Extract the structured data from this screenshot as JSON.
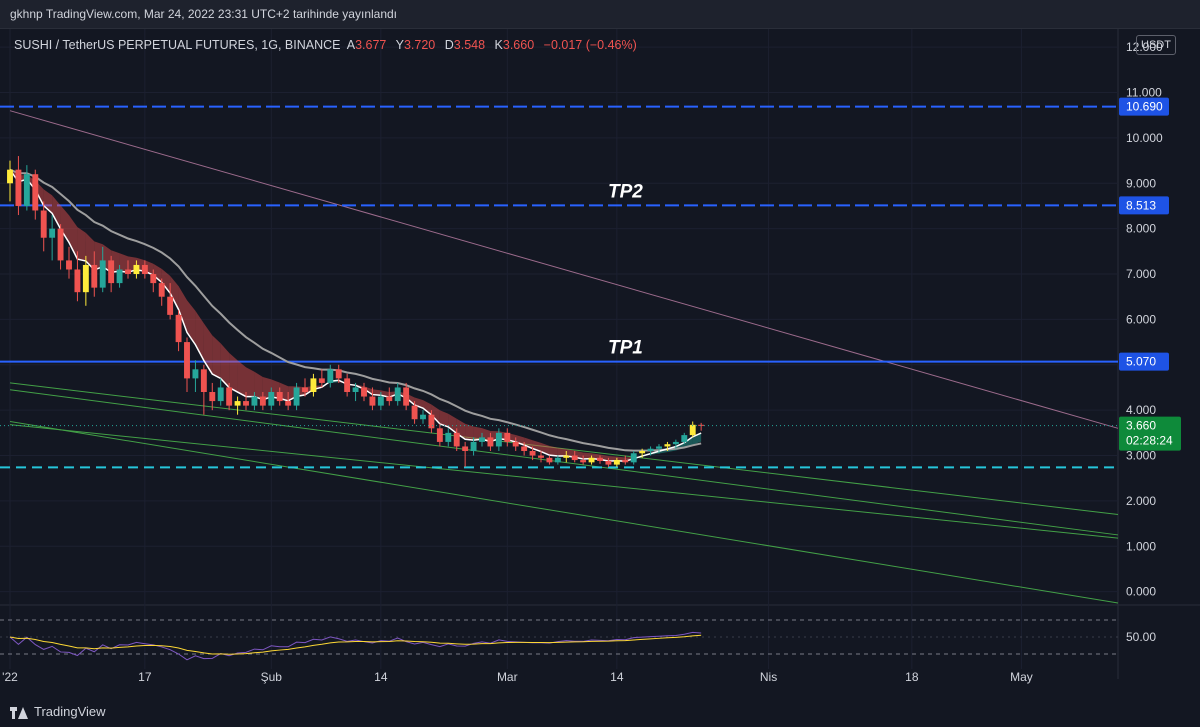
{
  "header": {
    "publish_line": "gkhnp TradingView.com, Mar 24, 2022 23:31 UTC+2 tarihinde yayınlandı"
  },
  "legend": {
    "symbol": "SUSHI / TetherUS PERPETUAL FUTURES, 1G, BINANCE",
    "open_label": "A",
    "open": "3.677",
    "high_label": "Y",
    "high": "3.720",
    "low_label": "D",
    "low": "3.548",
    "close_label": "K",
    "close": "3.660",
    "change": "−0.017 (−0.46%)"
  },
  "currency": "USDT",
  "brand": "TradingView",
  "colors": {
    "background": "#131722",
    "up": "#26a69a",
    "down": "#ef5350",
    "level_line": "#2962ff",
    "level_badge": "#1e53e5",
    "price_badge": "#0e8a3a",
    "trend_up": "#43a047",
    "trend_down": "#9c6b8c"
  },
  "chart_data": {
    "type": "candlestick",
    "ylim": [
      -0.25,
      12.4
    ],
    "y_ticks": [
      12,
      11,
      10,
      9,
      8,
      7,
      6,
      5,
      4,
      3,
      2,
      1,
      0
    ],
    "y_tick_labels": [
      "12.000",
      "11.000",
      "10.000",
      "9.000",
      "8.000",
      "7.000",
      "6.000",
      "5.000",
      "4.000",
      "3.000",
      "2.000",
      "1.000",
      "0.000"
    ],
    "x_range": [
      "2022-01-01",
      "2022-05-21"
    ],
    "x_ticks": [
      {
        "date": "2022-01-01",
        "label": "'22"
      },
      {
        "date": "2022-01-17",
        "label": "17"
      },
      {
        "date": "2022-02-01",
        "label": "Şub"
      },
      {
        "date": "2022-02-14",
        "label": "14"
      },
      {
        "date": "2022-03-01",
        "label": "Mar"
      },
      {
        "date": "2022-03-14",
        "label": "14"
      },
      {
        "date": "2022-04-01",
        "label": "Nis"
      },
      {
        "date": "2022-04-18",
        "label": "18"
      },
      {
        "date": "2022-05-01",
        "label": "May"
      }
    ],
    "levels": [
      {
        "value": 10.69,
        "label": "10.690",
        "style": "dashed"
      },
      {
        "value": 8.513,
        "label": "8.513",
        "style": "dashed",
        "annotation": "TP2"
      },
      {
        "value": 5.07,
        "label": "5.070",
        "style": "solid",
        "annotation": "TP1"
      },
      {
        "value": 2.74,
        "label": "",
        "style": "dashed-cyan"
      }
    ],
    "last_price": {
      "value": 3.66,
      "label": "3.660",
      "countdown": "02:28:24"
    },
    "candles": [
      {
        "date": "2022-01-01",
        "o": 9.0,
        "h": 9.5,
        "l": 8.6,
        "c": 9.3
      },
      {
        "date": "2022-01-02",
        "o": 9.3,
        "h": 9.6,
        "l": 8.3,
        "c": 8.5
      },
      {
        "date": "2022-01-03",
        "o": 8.5,
        "h": 9.4,
        "l": 8.4,
        "c": 9.2
      },
      {
        "date": "2022-01-04",
        "o": 9.2,
        "h": 9.3,
        "l": 8.2,
        "c": 8.4
      },
      {
        "date": "2022-01-05",
        "o": 8.4,
        "h": 8.6,
        "l": 7.5,
        "c": 7.8
      },
      {
        "date": "2022-01-06",
        "o": 7.8,
        "h": 8.3,
        "l": 7.3,
        "c": 8.0
      },
      {
        "date": "2022-01-07",
        "o": 8.0,
        "h": 8.1,
        "l": 7.1,
        "c": 7.3
      },
      {
        "date": "2022-01-08",
        "o": 7.3,
        "h": 7.6,
        "l": 6.9,
        "c": 7.1
      },
      {
        "date": "2022-01-09",
        "o": 7.1,
        "h": 7.5,
        "l": 6.4,
        "c": 6.6
      },
      {
        "date": "2022-01-10",
        "o": 6.6,
        "h": 7.4,
        "l": 6.3,
        "c": 7.2
      },
      {
        "date": "2022-01-11",
        "o": 7.2,
        "h": 7.5,
        "l": 6.5,
        "c": 6.7
      },
      {
        "date": "2022-01-12",
        "o": 6.7,
        "h": 7.6,
        "l": 6.6,
        "c": 7.3
      },
      {
        "date": "2022-01-13",
        "o": 7.3,
        "h": 7.4,
        "l": 6.6,
        "c": 6.8
      },
      {
        "date": "2022-01-14",
        "o": 6.8,
        "h": 7.2,
        "l": 6.7,
        "c": 7.1
      },
      {
        "date": "2022-01-15",
        "o": 7.1,
        "h": 7.3,
        "l": 6.9,
        "c": 7.0
      },
      {
        "date": "2022-01-16",
        "o": 7.0,
        "h": 7.3,
        "l": 6.9,
        "c": 7.2
      },
      {
        "date": "2022-01-17",
        "o": 7.2,
        "h": 7.3,
        "l": 6.9,
        "c": 7.0
      },
      {
        "date": "2022-01-18",
        "o": 7.0,
        "h": 7.1,
        "l": 6.6,
        "c": 6.8
      },
      {
        "date": "2022-01-19",
        "o": 6.8,
        "h": 6.9,
        "l": 6.3,
        "c": 6.5
      },
      {
        "date": "2022-01-20",
        "o": 6.5,
        "h": 6.8,
        "l": 6.0,
        "c": 6.1
      },
      {
        "date": "2022-01-21",
        "o": 6.1,
        "h": 6.2,
        "l": 5.3,
        "c": 5.5
      },
      {
        "date": "2022-01-22",
        "o": 5.5,
        "h": 5.6,
        "l": 4.4,
        "c": 4.7
      },
      {
        "date": "2022-01-23",
        "o": 4.7,
        "h": 5.1,
        "l": 4.4,
        "c": 4.9
      },
      {
        "date": "2022-01-24",
        "o": 4.9,
        "h": 5.0,
        "l": 3.9,
        "c": 4.4
      },
      {
        "date": "2022-01-25",
        "o": 4.4,
        "h": 4.6,
        "l": 4.0,
        "c": 4.2
      },
      {
        "date": "2022-01-26",
        "o": 4.2,
        "h": 4.7,
        "l": 4.1,
        "c": 4.5
      },
      {
        "date": "2022-01-27",
        "o": 4.5,
        "h": 4.6,
        "l": 4.0,
        "c": 4.1
      },
      {
        "date": "2022-01-28",
        "o": 4.1,
        "h": 4.3,
        "l": 3.9,
        "c": 4.2
      },
      {
        "date": "2022-01-29",
        "o": 4.2,
        "h": 4.4,
        "l": 4.0,
        "c": 4.1
      },
      {
        "date": "2022-01-30",
        "o": 4.1,
        "h": 4.4,
        "l": 4.0,
        "c": 4.3
      },
      {
        "date": "2022-01-31",
        "o": 4.3,
        "h": 4.4,
        "l": 4.0,
        "c": 4.1
      },
      {
        "date": "2022-02-01",
        "o": 4.1,
        "h": 4.5,
        "l": 4.0,
        "c": 4.4
      },
      {
        "date": "2022-02-02",
        "o": 4.4,
        "h": 4.5,
        "l": 4.1,
        "c": 4.2
      },
      {
        "date": "2022-02-03",
        "o": 4.2,
        "h": 4.4,
        "l": 4.0,
        "c": 4.1
      },
      {
        "date": "2022-02-04",
        "o": 4.1,
        "h": 4.6,
        "l": 4.0,
        "c": 4.5
      },
      {
        "date": "2022-02-05",
        "o": 4.5,
        "h": 4.7,
        "l": 4.3,
        "c": 4.4
      },
      {
        "date": "2022-02-06",
        "o": 4.4,
        "h": 4.8,
        "l": 4.3,
        "c": 4.7
      },
      {
        "date": "2022-02-07",
        "o": 4.7,
        "h": 4.9,
        "l": 4.5,
        "c": 4.6
      },
      {
        "date": "2022-02-08",
        "o": 4.6,
        "h": 5.0,
        "l": 4.5,
        "c": 4.9
      },
      {
        "date": "2022-02-09",
        "o": 4.9,
        "h": 5.0,
        "l": 4.6,
        "c": 4.7
      },
      {
        "date": "2022-02-10",
        "o": 4.7,
        "h": 4.8,
        "l": 4.3,
        "c": 4.4
      },
      {
        "date": "2022-02-11",
        "o": 4.4,
        "h": 4.6,
        "l": 4.2,
        "c": 4.5
      },
      {
        "date": "2022-02-12",
        "o": 4.5,
        "h": 4.6,
        "l": 4.2,
        "c": 4.3
      },
      {
        "date": "2022-02-13",
        "o": 4.3,
        "h": 4.5,
        "l": 4.0,
        "c": 4.1
      },
      {
        "date": "2022-02-14",
        "o": 4.1,
        "h": 4.4,
        "l": 4.0,
        "c": 4.3
      },
      {
        "date": "2022-02-15",
        "o": 4.3,
        "h": 4.5,
        "l": 4.1,
        "c": 4.2
      },
      {
        "date": "2022-02-16",
        "o": 4.2,
        "h": 4.6,
        "l": 4.1,
        "c": 4.5
      },
      {
        "date": "2022-02-17",
        "o": 4.5,
        "h": 4.6,
        "l": 4.0,
        "c": 4.1
      },
      {
        "date": "2022-02-18",
        "o": 4.1,
        "h": 4.2,
        "l": 3.7,
        "c": 3.8
      },
      {
        "date": "2022-02-19",
        "o": 3.8,
        "h": 4.0,
        "l": 3.7,
        "c": 3.9
      },
      {
        "date": "2022-02-20",
        "o": 3.9,
        "h": 4.0,
        "l": 3.5,
        "c": 3.6
      },
      {
        "date": "2022-02-21",
        "o": 3.6,
        "h": 3.7,
        "l": 3.2,
        "c": 3.3
      },
      {
        "date": "2022-02-22",
        "o": 3.3,
        "h": 3.6,
        "l": 3.2,
        "c": 3.5
      },
      {
        "date": "2022-02-23",
        "o": 3.5,
        "h": 3.6,
        "l": 3.1,
        "c": 3.2
      },
      {
        "date": "2022-02-24",
        "o": 3.2,
        "h": 3.3,
        "l": 2.75,
        "c": 3.1
      },
      {
        "date": "2022-02-25",
        "o": 3.1,
        "h": 3.4,
        "l": 3.0,
        "c": 3.3
      },
      {
        "date": "2022-02-26",
        "o": 3.3,
        "h": 3.5,
        "l": 3.2,
        "c": 3.4
      },
      {
        "date": "2022-02-27",
        "o": 3.4,
        "h": 3.5,
        "l": 3.1,
        "c": 3.2
      },
      {
        "date": "2022-02-28",
        "o": 3.2,
        "h": 3.6,
        "l": 3.1,
        "c": 3.5
      },
      {
        "date": "2022-03-01",
        "o": 3.5,
        "h": 3.6,
        "l": 3.2,
        "c": 3.3
      },
      {
        "date": "2022-03-02",
        "o": 3.3,
        "h": 3.4,
        "l": 3.1,
        "c": 3.2
      },
      {
        "date": "2022-03-03",
        "o": 3.2,
        "h": 3.3,
        "l": 3.0,
        "c": 3.1
      },
      {
        "date": "2022-03-04",
        "o": 3.1,
        "h": 3.2,
        "l": 2.9,
        "c": 3.0
      },
      {
        "date": "2022-03-05",
        "o": 3.0,
        "h": 3.1,
        "l": 2.85,
        "c": 2.95
      },
      {
        "date": "2022-03-06",
        "o": 2.95,
        "h": 3.0,
        "l": 2.8,
        "c": 2.85
      },
      {
        "date": "2022-03-07",
        "o": 2.85,
        "h": 3.0,
        "l": 2.8,
        "c": 2.95
      },
      {
        "date": "2022-03-08",
        "o": 2.95,
        "h": 3.1,
        "l": 2.85,
        "c": 3.0
      },
      {
        "date": "2022-03-09",
        "o": 3.0,
        "h": 3.1,
        "l": 2.85,
        "c": 2.9
      },
      {
        "date": "2022-03-10",
        "o": 2.9,
        "h": 3.0,
        "l": 2.8,
        "c": 2.85
      },
      {
        "date": "2022-03-11",
        "o": 2.85,
        "h": 3.0,
        "l": 2.8,
        "c": 2.95
      },
      {
        "date": "2022-03-12",
        "o": 2.95,
        "h": 3.0,
        "l": 2.82,
        "c": 2.88
      },
      {
        "date": "2022-03-13",
        "o": 2.88,
        "h": 2.95,
        "l": 2.75,
        "c": 2.8
      },
      {
        "date": "2022-03-14",
        "o": 2.8,
        "h": 2.95,
        "l": 2.75,
        "c": 2.9
      },
      {
        "date": "2022-03-15",
        "o": 2.9,
        "h": 3.0,
        "l": 2.8,
        "c": 2.85
      },
      {
        "date": "2022-03-16",
        "o": 2.85,
        "h": 3.1,
        "l": 2.8,
        "c": 3.05
      },
      {
        "date": "2022-03-17",
        "o": 3.05,
        "h": 3.15,
        "l": 2.95,
        "c": 3.1
      },
      {
        "date": "2022-03-18",
        "o": 3.1,
        "h": 3.2,
        "l": 3.0,
        "c": 3.15
      },
      {
        "date": "2022-03-19",
        "o": 3.15,
        "h": 3.25,
        "l": 3.05,
        "c": 3.2
      },
      {
        "date": "2022-03-20",
        "o": 3.2,
        "h": 3.3,
        "l": 3.1,
        "c": 3.25
      },
      {
        "date": "2022-03-21",
        "o": 3.25,
        "h": 3.35,
        "l": 3.15,
        "c": 3.3
      },
      {
        "date": "2022-03-22",
        "o": 3.3,
        "h": 3.5,
        "l": 3.25,
        "c": 3.45
      },
      {
        "date": "2022-03-23",
        "o": 3.45,
        "h": 3.75,
        "l": 3.4,
        "c": 3.677
      },
      {
        "date": "2022-03-24",
        "o": 3.677,
        "h": 3.72,
        "l": 3.548,
        "c": 3.66
      }
    ]
  }
}
